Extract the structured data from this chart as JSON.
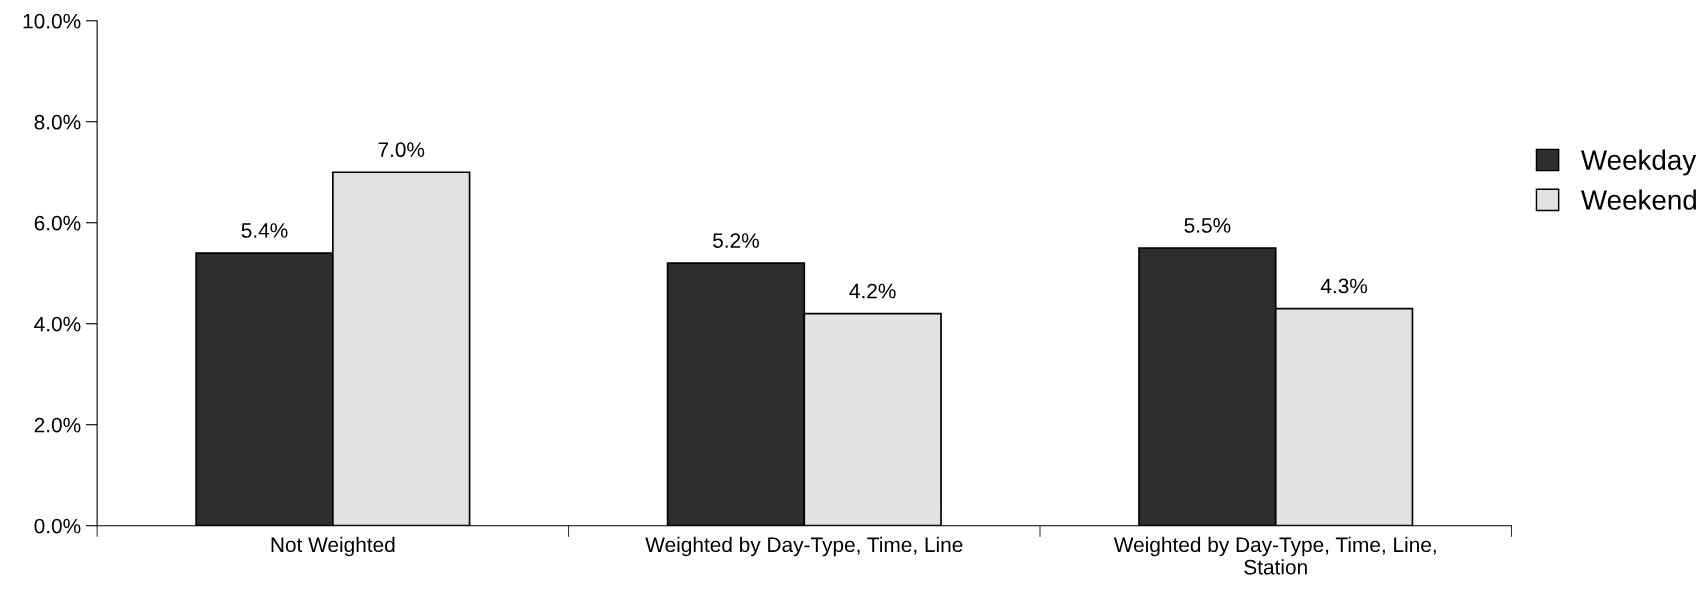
{
  "chart_data": {
    "type": "bar",
    "categories": [
      "Not Weighted",
      "Weighted by Day-Type, Time, Line",
      "Weighted by Day-Type, Time, Line,\nStation"
    ],
    "series": [
      {
        "name": "Weekday",
        "color": "#2e2e2e",
        "values": [
          5.4,
          5.2,
          5.5
        ],
        "value_labels": [
          "5.4%",
          "5.2%",
          "5.5%"
        ]
      },
      {
        "name": "Weekend",
        "color": "#e2e2e2",
        "values": [
          7.0,
          4.2,
          4.3
        ],
        "value_labels": [
          "7.0%",
          "4.2%",
          "4.3%"
        ]
      }
    ],
    "ylim": [
      0,
      10
    ],
    "yticks": [
      {
        "value": 0,
        "label": "0.0%"
      },
      {
        "value": 2,
        "label": "2.0%"
      },
      {
        "value": 4,
        "label": "4.0%"
      },
      {
        "value": 6,
        "label": "6.0%"
      },
      {
        "value": 8,
        "label": "8.0%"
      },
      {
        "value": 10,
        "label": "10.0%"
      }
    ],
    "grid": false,
    "legend": "right"
  }
}
